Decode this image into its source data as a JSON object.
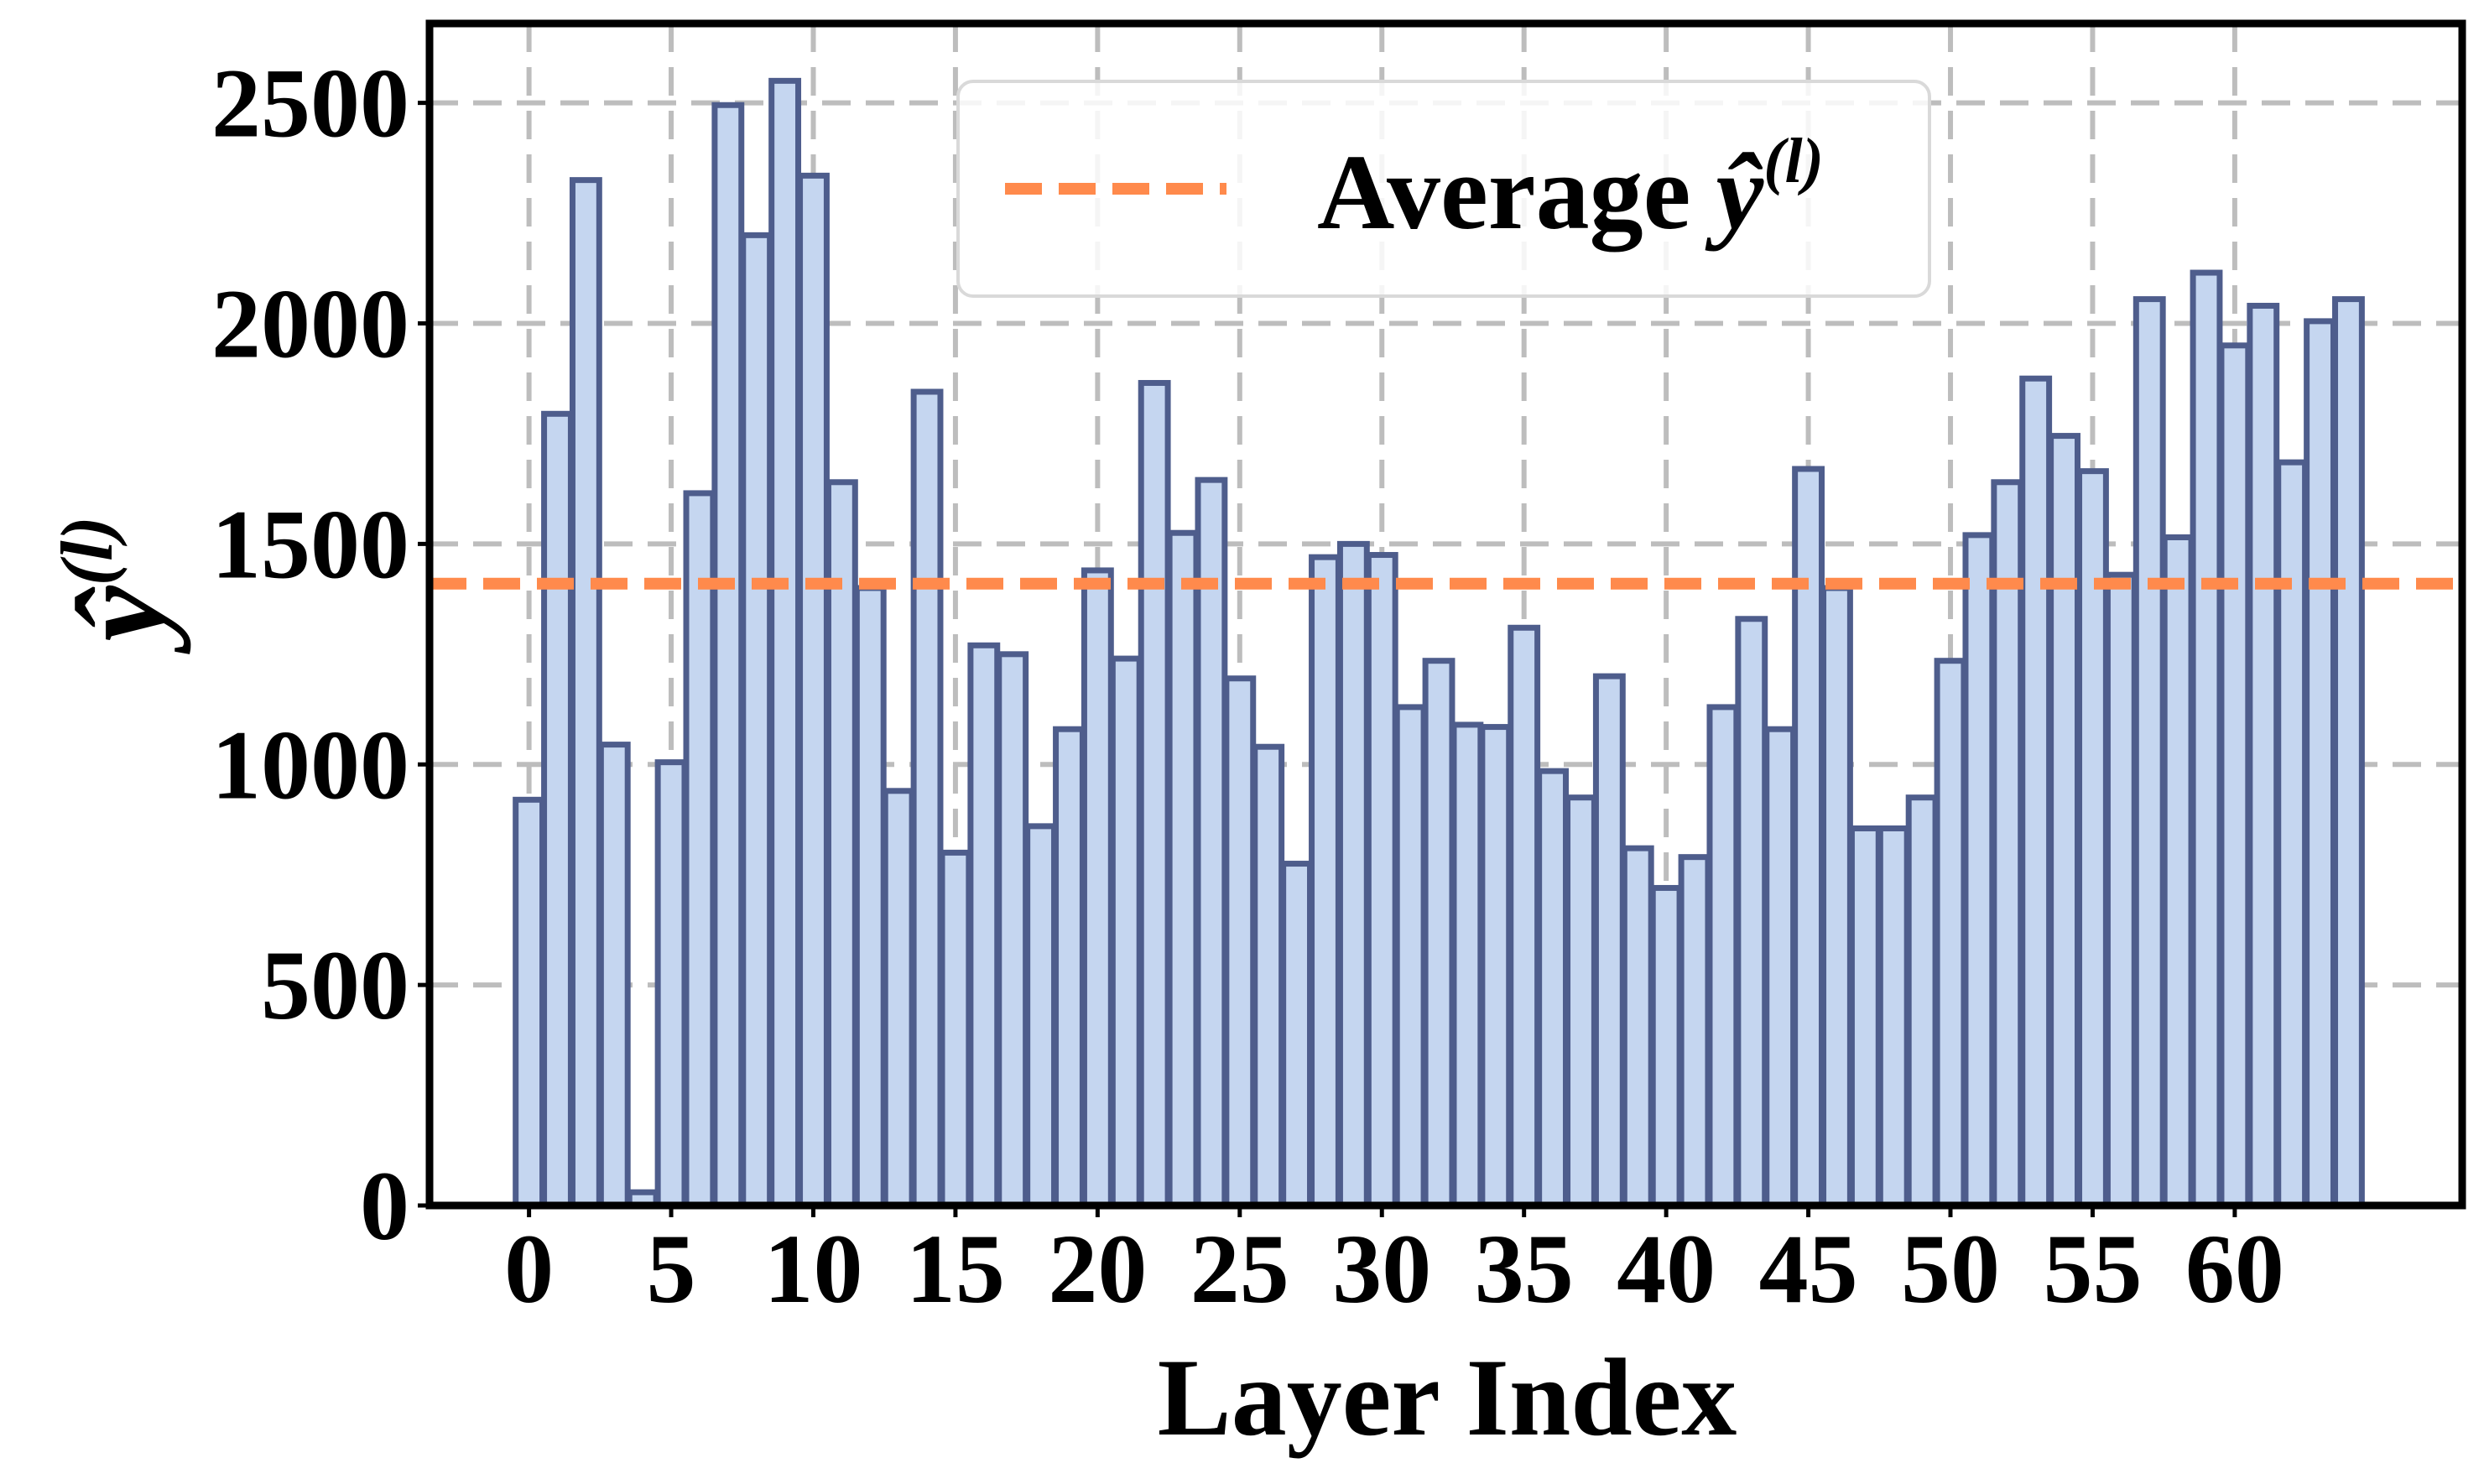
{
  "chart_data": {
    "type": "bar",
    "title": "",
    "xlabel": "Layer Index",
    "ylabel": {
      "base": "ŷ",
      "sup": "(l)"
    },
    "x": [
      0,
      1,
      2,
      3,
      4,
      5,
      6,
      7,
      8,
      9,
      10,
      11,
      12,
      13,
      14,
      15,
      16,
      17,
      18,
      19,
      20,
      21,
      22,
      23,
      24,
      25,
      26,
      27,
      28,
      29,
      30,
      31,
      32,
      33,
      34,
      35,
      36,
      37,
      38,
      39,
      40,
      41,
      42,
      43,
      44,
      45,
      46,
      47,
      48,
      49,
      50,
      51,
      52,
      53,
      54,
      55,
      56,
      57,
      58,
      59,
      60,
      61,
      62,
      63,
      64
    ],
    "values": [
      920,
      1795,
      2325,
      1045,
      30,
      1005,
      1615,
      2495,
      2200,
      2550,
      2335,
      1640,
      1400,
      940,
      1845,
      800,
      1270,
      1250,
      860,
      1080,
      1440,
      1240,
      1865,
      1525,
      1645,
      1195,
      1040,
      775,
      1470,
      1500,
      1475,
      1130,
      1235,
      1090,
      1085,
      1310,
      985,
      925,
      1200,
      810,
      720,
      790,
      1130,
      1330,
      1080,
      1670,
      1400,
      855,
      855,
      925,
      1235,
      1520,
      1640,
      1875,
      1745,
      1665,
      1430,
      2055,
      1515,
      2115,
      1950,
      2040,
      1685,
      2005,
      2055
    ],
    "average": 1410,
    "legend": {
      "label_text": "Average",
      "label_symbol": "ŷ",
      "label_sup": "(l)",
      "position": "top-center"
    },
    "xticks": [
      0,
      5,
      10,
      15,
      20,
      25,
      30,
      35,
      40,
      45,
      50,
      55,
      60
    ],
    "yticks": [
      0,
      500,
      1000,
      1500,
      2000,
      2500
    ],
    "xlim": [
      -3.5,
      68
    ],
    "ylim": [
      0,
      2680
    ],
    "grid": true,
    "colors": {
      "bar_fill": "#c5d6f0",
      "bar_edge": "#4e5d8c",
      "average_line": "#ff8a4c",
      "grid": "#bdbdbd",
      "frame": "#000000"
    }
  }
}
